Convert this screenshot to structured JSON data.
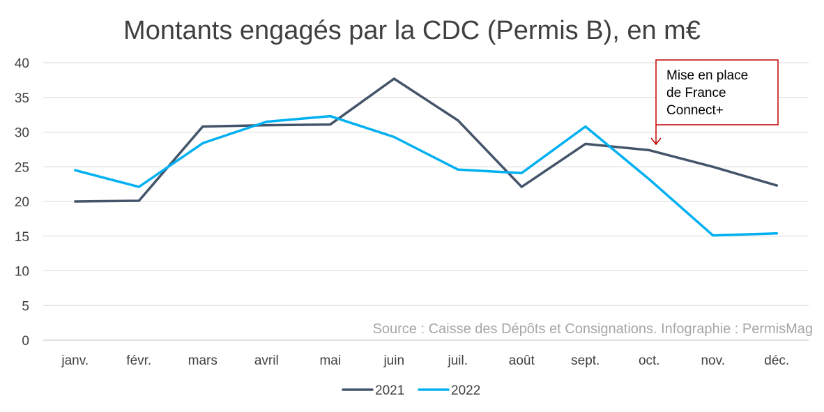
{
  "chart_data": {
    "type": "line",
    "title": "Montants engagés par la CDC (Permis B), en m€",
    "categories": [
      "janv.",
      "févr.",
      "mars",
      "avril",
      "mai",
      "juin",
      "juil.",
      "août",
      "sept.",
      "oct.",
      "nov.",
      "déc."
    ],
    "series": [
      {
        "name": "2021",
        "color": "#44546a",
        "values": [
          20.0,
          20.1,
          30.8,
          31.0,
          31.1,
          37.7,
          31.7,
          22.1,
          28.3,
          27.4,
          25.0,
          22.3
        ]
      },
      {
        "name": "2022",
        "color": "#00b0f0",
        "values": [
          24.5,
          22.1,
          28.4,
          31.5,
          32.3,
          29.3,
          24.6,
          24.1,
          30.8,
          23.2,
          15.1,
          15.4
        ]
      }
    ],
    "ylim": [
      0,
      40
    ],
    "yticks": [
      0,
      5,
      10,
      15,
      20,
      25,
      30,
      35,
      40
    ],
    "grid": true,
    "legend": "bottom",
    "annotation": {
      "lines": [
        "Mise en place",
        "de France",
        "Connect+"
      ],
      "category": "oct.",
      "border_color": "#c00000"
    },
    "source": "Source : Caisse des Dépôts et Consignations. Infographie : PermisMag"
  }
}
